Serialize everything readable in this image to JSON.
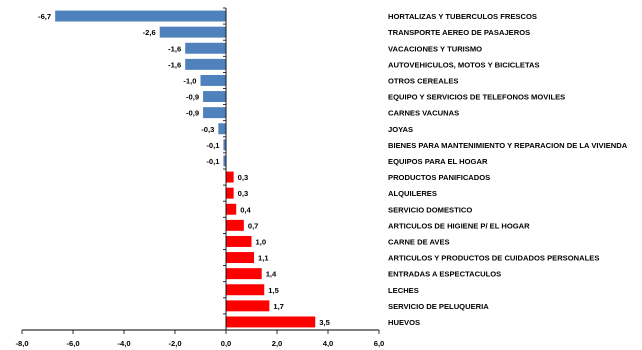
{
  "chart_data": {
    "type": "bar",
    "orientation": "horizontal",
    "title": "",
    "xlabel": "",
    "ylabel": "",
    "xlim": [
      -8.0,
      6.0
    ],
    "x_ticks": [
      "-8,0",
      "-6,0",
      "-4,0",
      "-2,0",
      "0,0",
      "2,0",
      "4,0",
      "6,0"
    ],
    "x_tick_values": [
      -8,
      -6,
      -4,
      -2,
      0,
      2,
      4,
      6
    ],
    "grid": false,
    "legend": "none",
    "colors": {
      "negative": "#4f81bd",
      "positive": "#ff0000"
    },
    "categories": [
      "HORTALIZAS Y TUBERCULOS FRESCOS",
      "TRANSPORTE AEREO DE PASAJEROS",
      "VACACIONES Y TURISMO",
      "AUTOVEHICULOS, MOTOS Y BICICLETAS",
      "OTROS CEREALES",
      "EQUIPO Y SERVICIOS DE TELEFONOS MOVILES",
      "CARNES VACUNAS",
      "JOYAS",
      "BIENES PARA MANTENIMIENTO Y REPARACION DE LA VIVIENDA",
      "EQUIPOS PARA EL HOGAR",
      "PRODUCTOS PANIFICADOS",
      "ALQUILERES",
      "SERVICIO DOMESTICO",
      "ARTICULOS DE HIGIENE P/ EL HOGAR",
      "CARNE DE AVES",
      "ARTICULOS Y PRODUCTOS DE CUIDADOS PERSONALES",
      "ENTRADAS  A ESPECTACULOS",
      "LECHES",
      "SERVICIO DE PELUQUERIA",
      "HUEVOS"
    ],
    "values": [
      -6.7,
      -2.6,
      -1.6,
      -1.6,
      -1.0,
      -0.9,
      -0.9,
      -0.3,
      -0.1,
      -0.1,
      0.3,
      0.3,
      0.4,
      0.7,
      1.0,
      1.1,
      1.4,
      1.5,
      1.7,
      3.5
    ],
    "value_labels": [
      "-6,7",
      "-2,6",
      "-1,6",
      "-1,6",
      "-1,0",
      "-0,9",
      "-0,9",
      "-0,3",
      "-0,1",
      "-0,1",
      "0,3",
      "0,3",
      "0,4",
      "0,7",
      "1,0",
      "1,1",
      "1,4",
      "1,5",
      "1,7",
      "3,5"
    ]
  }
}
